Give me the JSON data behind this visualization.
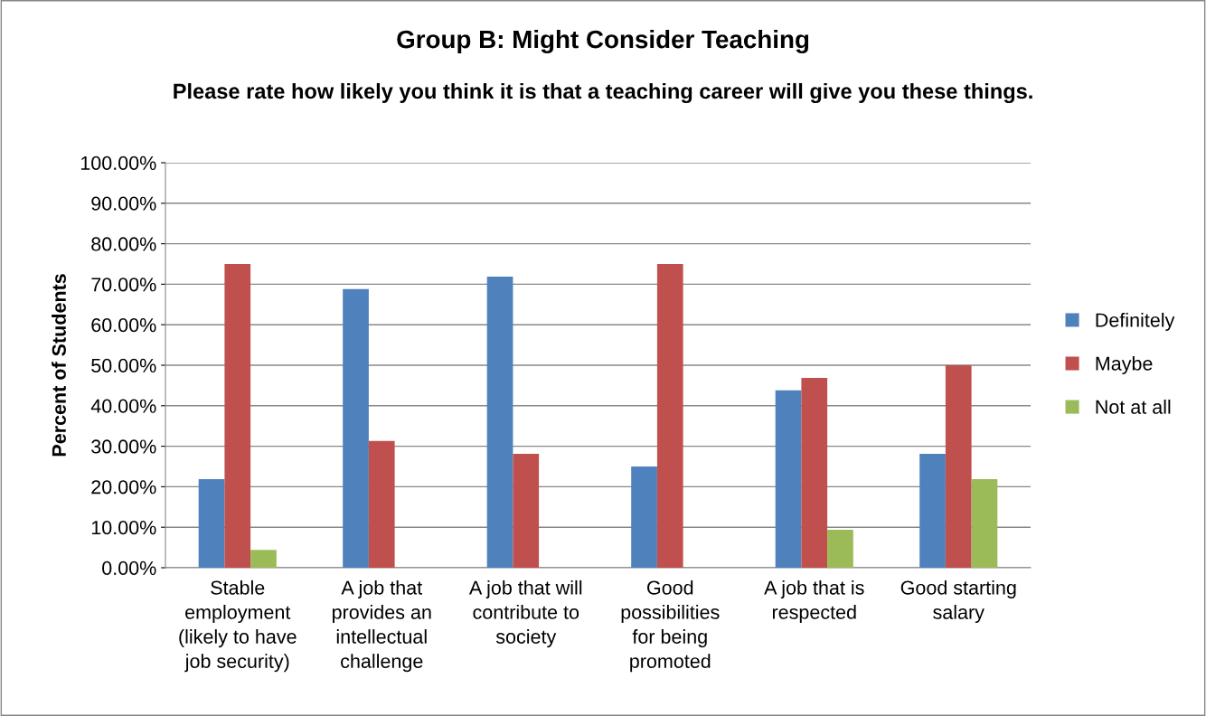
{
  "chart_data": {
    "type": "bar",
    "title": "Group B: Might Consider Teaching",
    "subtitle": "Please rate how likely you think it is that a teaching career will give you these things.",
    "ylabel": "Percent of Students",
    "categories": [
      "Stable employment (likely to have job security)",
      "A job that provides an intellectual challenge",
      "A job that will contribute to society",
      "Good possibilities for being promoted",
      "A job that is respected",
      "Good starting salary"
    ],
    "series": [
      {
        "name": "Definitely",
        "color": "#4f81bd",
        "values": [
          21.9,
          68.8,
          71.9,
          25,
          43.8,
          28.1
        ]
      },
      {
        "name": "Maybe",
        "color": "#c0504d",
        "values": [
          75,
          31.3,
          28.1,
          75,
          46.9,
          50
        ]
      },
      {
        "name": "Not at all",
        "color": "#9bbb59",
        "values": [
          4.4,
          0,
          0,
          0,
          9.4,
          21.9
        ]
      }
    ],
    "ylim": [
      0,
      100
    ],
    "yticks": [
      {
        "value": 0,
        "label": "0.00%"
      },
      {
        "value": 10,
        "label": "10.00%"
      },
      {
        "value": 20,
        "label": "20.00%"
      },
      {
        "value": 30,
        "label": "30.00%"
      },
      {
        "value": 40,
        "label": "40.00%"
      },
      {
        "value": 50,
        "label": "50.00%"
      },
      {
        "value": 60,
        "label": "60.00%"
      },
      {
        "value": 70,
        "label": "70.00%"
      },
      {
        "value": 80,
        "label": "80.00%"
      },
      {
        "value": 90,
        "label": "90.00%"
      },
      {
        "value": 100,
        "label": "100.00%"
      }
    ],
    "grid": "y",
    "legend": "right"
  }
}
